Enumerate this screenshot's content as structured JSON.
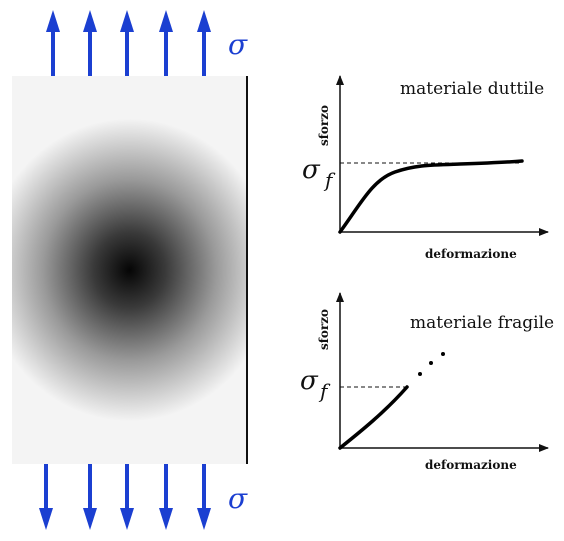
{
  "specimen": {
    "stress_symbol": "σ",
    "arrow_color": "#1b3fd1",
    "arrow_count_top": 5,
    "arrow_count_bottom": 5
  },
  "graphs": [
    {
      "id": "ductile",
      "title": "materiale duttile",
      "y_label": "sforzo",
      "x_label": "deformazione",
      "yield_symbol": "σ",
      "yield_subscript": "f"
    },
    {
      "id": "brittle",
      "title": "materiale fragile",
      "y_label": "sforzo",
      "x_label": "deformazione",
      "yield_symbol": "σ",
      "yield_subscript": "f"
    }
  ]
}
